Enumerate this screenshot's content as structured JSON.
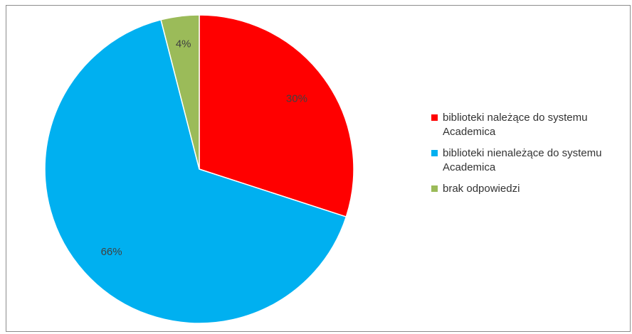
{
  "chart_data": {
    "type": "pie",
    "title": "",
    "slices": [
      {
        "label": "biblioteki należące do systemu Academica",
        "value": 30,
        "display": "30%",
        "color": "#ff0000"
      },
      {
        "label": "biblioteki nienależące do systemu Academica",
        "value": 66,
        "display": "66%",
        "color": "#00b0f0"
      },
      {
        "label": "brak odpowiedzi",
        "value": 4,
        "display": "4%",
        "color": "#9bbb59"
      }
    ],
    "start_angle_deg": 0,
    "direction": "clockwise",
    "legend_position": "right"
  }
}
